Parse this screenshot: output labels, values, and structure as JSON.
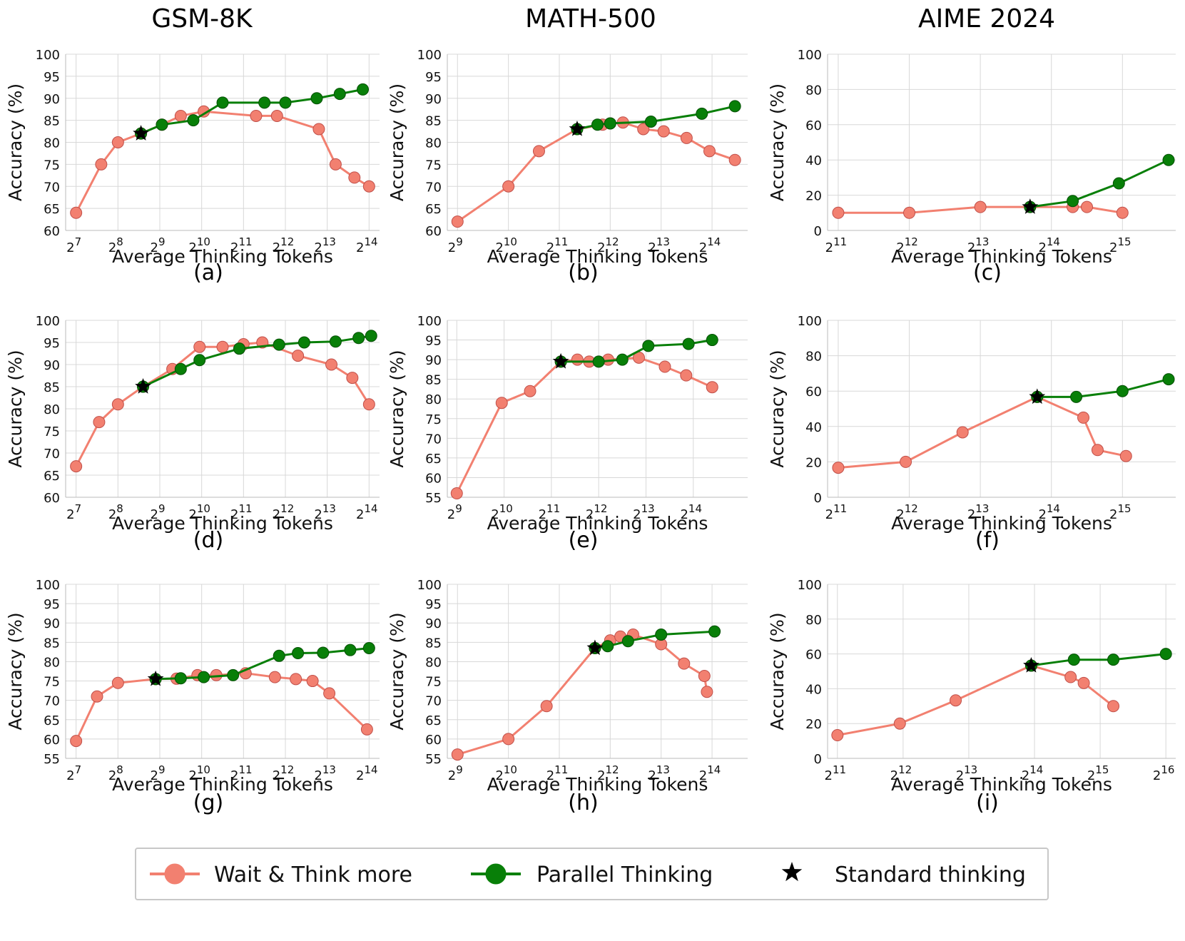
{
  "column_titles": [
    "GSM-8K",
    "MATH-500",
    "AIME 2024"
  ],
  "legend": [
    {
      "label": "Wait & Think more",
      "color": "#f28070",
      "marker": "circle"
    },
    {
      "label": "Parallel Thinking",
      "color": "#087f08",
      "marker": "circle"
    },
    {
      "label": "Standard thinking",
      "color": "#000000",
      "marker": "star"
    }
  ],
  "colors": {
    "wait": "#f28070",
    "wait_edge": "#c0504a",
    "parallel": "#087f08",
    "parallel_edge": "#055005",
    "star": "#000000",
    "grid": "#d8d8d8"
  },
  "chart_data": [
    {
      "id": "a",
      "panel_label": "(a)",
      "type": "line",
      "xscale": "log2",
      "xlim": [
        6.75,
        14.25
      ],
      "xticks": [
        7,
        8,
        9,
        10,
        11,
        12,
        13,
        14
      ],
      "xlabel": "Average Thinking Tokens",
      "ylabel": "Accuracy (%)",
      "ylim": [
        60,
        100
      ],
      "yticks": [
        60,
        65,
        70,
        75,
        80,
        85,
        90,
        95,
        100
      ],
      "series": [
        {
          "name": "Wait & Think more",
          "x": [
            7.0,
            7.6,
            8.0,
            8.55,
            9.05,
            9.5,
            10.05,
            11.3,
            11.8,
            12.8,
            13.2,
            13.65,
            14.0
          ],
          "y": [
            64,
            75,
            80,
            82,
            84,
            86,
            87,
            86,
            86,
            83,
            75,
            72,
            70
          ]
        },
        {
          "name": "Parallel Thinking",
          "x": [
            8.55,
            9.05,
            9.8,
            10.5,
            11.5,
            12.0,
            12.75,
            13.3,
            13.85
          ],
          "y": [
            82,
            84,
            85,
            89,
            89,
            89,
            90,
            91,
            92
          ]
        }
      ],
      "star": {
        "x": 8.55,
        "y": 82
      }
    },
    {
      "id": "b",
      "panel_label": "(b)",
      "type": "line",
      "xscale": "log2",
      "xlim": [
        8.8,
        14.7
      ],
      "xticks": [
        9,
        10,
        11,
        12,
        13,
        14
      ],
      "xlabel": "Average Thinking Tokens",
      "ylabel": "Accuracy (%)",
      "ylim": [
        60,
        100
      ],
      "yticks": [
        60,
        65,
        70,
        75,
        80,
        85,
        90,
        95,
        100
      ],
      "series": [
        {
          "name": "Wait & Think more",
          "x": [
            9.0,
            10.0,
            10.6,
            11.35,
            11.85,
            12.0,
            12.25,
            12.65,
            13.05,
            13.5,
            13.95,
            14.45
          ],
          "y": [
            62,
            70,
            78,
            83,
            84,
            84.3,
            84.5,
            83,
            82.5,
            81,
            78,
            76
          ]
        },
        {
          "name": "Parallel Thinking",
          "x": [
            11.35,
            11.75,
            12.0,
            12.8,
            13.8,
            14.45
          ],
          "y": [
            83,
            84,
            84.3,
            84.7,
            86.5,
            88.2
          ]
        }
      ],
      "star": {
        "x": 11.35,
        "y": 83
      }
    },
    {
      "id": "c",
      "panel_label": "(c)",
      "type": "line",
      "xscale": "log2",
      "xlim": [
        10.85,
        15.75
      ],
      "xticks": [
        11,
        12,
        13,
        14,
        15
      ],
      "xlabel": "Average Thinking Tokens",
      "ylabel": "Accuracy (%)",
      "ylim": [
        0,
        100
      ],
      "yticks": [
        0,
        20,
        40,
        60,
        80,
        100
      ],
      "series": [
        {
          "name": "Wait & Think more",
          "x": [
            11.0,
            12.0,
            13.0,
            13.7,
            14.3,
            14.5,
            15.0
          ],
          "y": [
            10,
            10,
            13.3,
            13.3,
            13.3,
            13.3,
            10
          ]
        },
        {
          "name": "Parallel Thinking",
          "x": [
            13.7,
            14.3,
            14.95,
            15.65
          ],
          "y": [
            13.3,
            16.7,
            26.7,
            40
          ]
        }
      ],
      "star": {
        "x": 13.7,
        "y": 13.3
      }
    },
    {
      "id": "d",
      "panel_label": "(d)",
      "type": "line",
      "xscale": "log2",
      "xlim": [
        6.75,
        14.25
      ],
      "xticks": [
        7,
        8,
        9,
        10,
        11,
        12,
        13,
        14
      ],
      "xlabel": "Average Thinking Tokens",
      "ylabel": "Accuracy (%)",
      "ylim": [
        60,
        100
      ],
      "yticks": [
        60,
        65,
        70,
        75,
        80,
        85,
        90,
        95,
        100
      ],
      "series": [
        {
          "name": "Wait & Think more",
          "x": [
            7.0,
            7.55,
            8.0,
            8.6,
            9.3,
            9.95,
            10.5,
            11.0,
            11.45,
            12.3,
            13.1,
            13.6,
            14.0
          ],
          "y": [
            67,
            77,
            81,
            85,
            89,
            94,
            94,
            94.6,
            95,
            92,
            90,
            87,
            81
          ]
        },
        {
          "name": "Parallel Thinking",
          "x": [
            8.6,
            9.5,
            9.95,
            10.9,
            11.85,
            12.45,
            13.2,
            13.75,
            14.05
          ],
          "y": [
            85,
            89,
            91,
            93.6,
            94.5,
            95,
            95.2,
            96,
            96.5
          ]
        }
      ],
      "star": {
        "x": 8.6,
        "y": 85
      }
    },
    {
      "id": "e",
      "panel_label": "(e)",
      "type": "line",
      "xscale": "log2",
      "xlim": [
        8.8,
        15.15
      ],
      "xticks": [
        9,
        10,
        11,
        12,
        13,
        14
      ],
      "xlabel": "Average Thinking Tokens",
      "ylabel": "Accuracy (%)",
      "ylim": [
        55,
        100
      ],
      "yticks": [
        55,
        60,
        65,
        70,
        75,
        80,
        85,
        90,
        95,
        100
      ],
      "series": [
        {
          "name": "Wait & Think more",
          "x": [
            9.0,
            9.95,
            10.55,
            11.2,
            11.55,
            11.8,
            12.2,
            12.85,
            13.4,
            13.85,
            14.4
          ],
          "y": [
            56,
            79,
            82,
            89.5,
            90,
            89.5,
            90,
            90.5,
            88.2,
            86,
            83
          ]
        },
        {
          "name": "Parallel Thinking",
          "x": [
            11.2,
            12.0,
            12.5,
            13.05,
            13.9,
            14.4
          ],
          "y": [
            89.5,
            89.5,
            90,
            93.5,
            94,
            95
          ]
        }
      ],
      "star": {
        "x": 11.2,
        "y": 89.5
      }
    },
    {
      "id": "f",
      "panel_label": "(f)",
      "type": "line",
      "xscale": "log2",
      "xlim": [
        10.85,
        15.75
      ],
      "xticks": [
        11,
        12,
        13,
        14,
        15
      ],
      "xlabel": "Average Thinking Tokens",
      "ylabel": "Accuracy (%)",
      "ylim": [
        0,
        100
      ],
      "yticks": [
        0,
        20,
        40,
        60,
        80,
        100
      ],
      "series": [
        {
          "name": "Wait & Think more",
          "x": [
            11.0,
            11.95,
            12.75,
            13.8,
            14.45,
            14.65,
            15.05
          ],
          "y": [
            16.7,
            20,
            36.7,
            56.7,
            45,
            26.7,
            23.3
          ]
        },
        {
          "name": "Parallel Thinking",
          "x": [
            13.8,
            14.35,
            15.0,
            15.65
          ],
          "y": [
            56.7,
            56.7,
            60,
            66.7
          ]
        }
      ],
      "star": {
        "x": 13.8,
        "y": 56.7
      }
    },
    {
      "id": "g",
      "panel_label": "(g)",
      "type": "line",
      "xscale": "log2",
      "xlim": [
        6.75,
        14.25
      ],
      "xticks": [
        7,
        8,
        9,
        10,
        11,
        12,
        13,
        14
      ],
      "xlabel": "Average Thinking Tokens",
      "ylabel": "Accuracy (%)",
      "ylim": [
        55,
        100
      ],
      "yticks": [
        55,
        60,
        65,
        70,
        75,
        80,
        85,
        90,
        95,
        100
      ],
      "series": [
        {
          "name": "Wait & Think more",
          "x": [
            7.0,
            7.5,
            8.0,
            8.9,
            9.4,
            9.9,
            10.35,
            11.05,
            11.75,
            12.25,
            12.65,
            13.05,
            13.95
          ],
          "y": [
            59.5,
            71,
            74.5,
            75.5,
            75.6,
            76.5,
            76.5,
            77,
            76,
            75.5,
            75,
            71.8,
            62.5
          ]
        },
        {
          "name": "Parallel Thinking",
          "x": [
            8.9,
            9.5,
            10.05,
            10.75,
            11.85,
            12.3,
            12.9,
            13.55,
            14.0
          ],
          "y": [
            75.5,
            75.7,
            76,
            76.5,
            81.5,
            82.2,
            82.3,
            83,
            83.5
          ]
        }
      ],
      "star": {
        "x": 8.9,
        "y": 75.5
      }
    },
    {
      "id": "h",
      "panel_label": "(h)",
      "type": "line",
      "xscale": "log2",
      "xlim": [
        8.8,
        14.7
      ],
      "xticks": [
        9,
        10,
        11,
        12,
        13,
        14
      ],
      "xlabel": "Average Thinking Tokens",
      "ylabel": "Accuracy (%)",
      "ylim": [
        55,
        100
      ],
      "yticks": [
        55,
        60,
        65,
        70,
        75,
        80,
        85,
        90,
        95,
        100
      ],
      "series": [
        {
          "name": "Wait & Think more",
          "x": [
            9.0,
            10.0,
            10.75,
            11.7,
            12.0,
            12.2,
            12.45,
            13.0,
            13.45,
            13.85,
            13.9
          ],
          "y": [
            56,
            60,
            68.5,
            83.5,
            85.5,
            86.5,
            87,
            84.5,
            79.5,
            76.3,
            72.2
          ]
        },
        {
          "name": "Parallel Thinking",
          "x": [
            11.7,
            11.95,
            12.35,
            13.0,
            14.05
          ],
          "y": [
            83.5,
            84,
            85.3,
            87,
            87.8
          ]
        }
      ],
      "star": {
        "x": 11.7,
        "y": 83.5
      }
    },
    {
      "id": "i",
      "panel_label": "(i)",
      "type": "line",
      "xscale": "log2",
      "xlim": [
        10.85,
        16.15
      ],
      "xticks": [
        11,
        12,
        13,
        14,
        15,
        16
      ],
      "xlabel": "Average Thinking Tokens",
      "ylabel": "Accuracy (%)",
      "ylim": [
        0,
        100
      ],
      "yticks": [
        0,
        20,
        40,
        60,
        80,
        100
      ],
      "series": [
        {
          "name": "Wait & Think more",
          "x": [
            11.0,
            11.95,
            12.8,
            13.95,
            14.55,
            14.75,
            15.2
          ],
          "y": [
            13.3,
            20,
            33.3,
            53.3,
            46.7,
            43.3,
            30
          ]
        },
        {
          "name": "Parallel Thinking",
          "x": [
            13.95,
            14.6,
            15.2,
            16.0
          ],
          "y": [
            53.3,
            56.7,
            56.7,
            60
          ]
        }
      ],
      "star": {
        "x": 13.95,
        "y": 53.3
      }
    }
  ]
}
